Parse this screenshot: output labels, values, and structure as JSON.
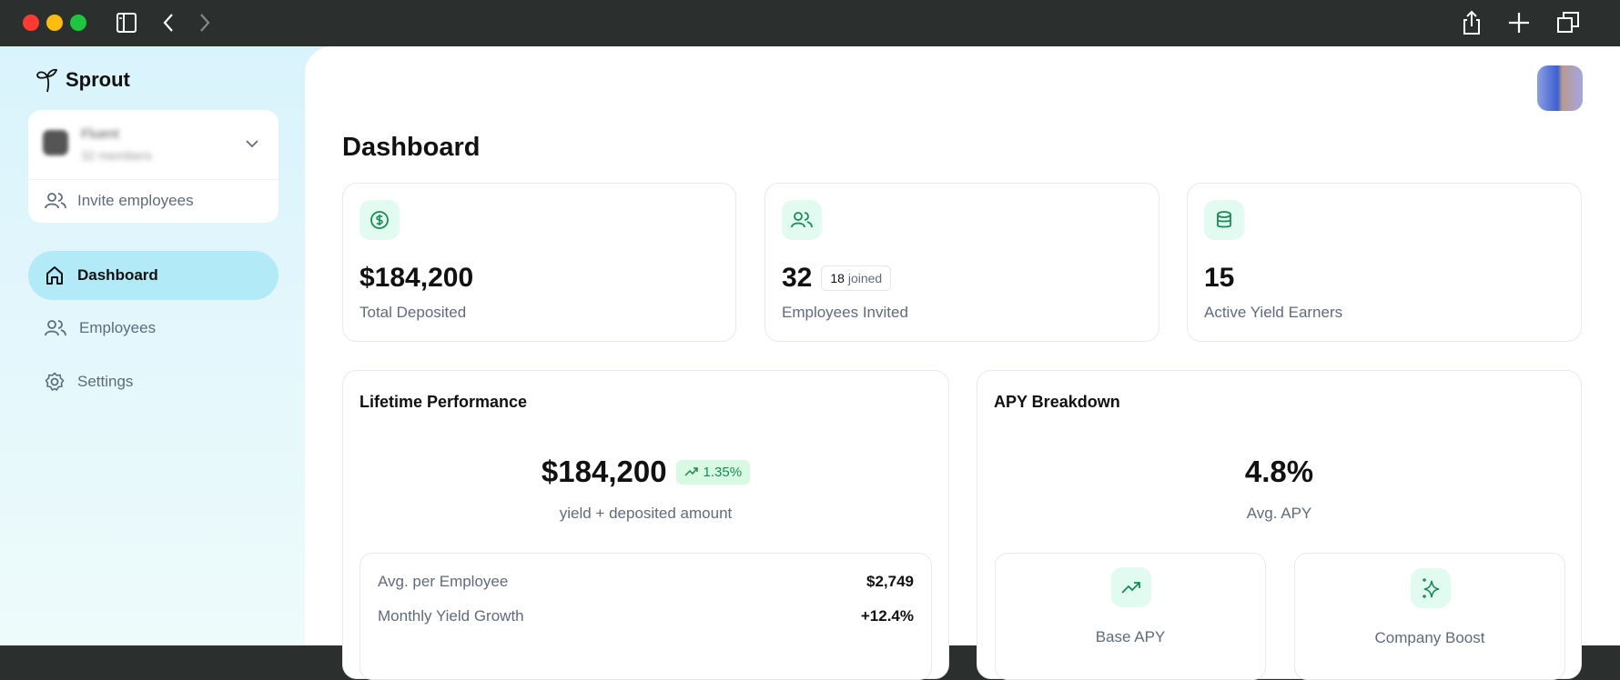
{
  "browser": {
    "icons": [
      "sidebar-toggle-icon",
      "back-icon",
      "forward-icon",
      "share-icon",
      "new-tab-icon",
      "tabs-icon"
    ]
  },
  "brand": {
    "name": "Sprout"
  },
  "org": {
    "name": "Fluent",
    "members": "32 members",
    "invite_label": "Invite employees"
  },
  "nav": [
    {
      "label": "Dashboard",
      "icon": "home-icon",
      "active": true
    },
    {
      "label": "Employees",
      "icon": "users-icon"
    },
    {
      "label": "Settings",
      "icon": "gear-icon"
    }
  ],
  "page": {
    "title": "Dashboard"
  },
  "stats": [
    {
      "icon": "dollar-icon",
      "value": "$184,200",
      "label": "Total Deposited"
    },
    {
      "icon": "users-icon",
      "value": "32",
      "badge_count": "18",
      "badge_text": "joined",
      "label": "Employees Invited"
    },
    {
      "icon": "database-icon",
      "value": "15",
      "label": "Active Yield Earners"
    }
  ],
  "lifetime": {
    "title": "Lifetime Performance",
    "value": "$184,200",
    "change": "1.35%",
    "subtitle": "yield + deposited amount",
    "rows": [
      {
        "label": "Avg. per Employee",
        "value": "$2,749"
      },
      {
        "label": "Monthly Yield Growth",
        "value": "+12.4%"
      }
    ]
  },
  "apy": {
    "title": "APY Breakdown",
    "value": "4.8%",
    "subtitle": "Avg. APY",
    "items": [
      {
        "icon": "trending-up-icon",
        "label": "Base APY"
      },
      {
        "icon": "sparkles-icon",
        "label": "Company Boost"
      }
    ]
  },
  "colors": {
    "accent": "#1a8a55",
    "active_nav": "#b3eaf8",
    "icon_bg": "#e1fbf1",
    "badge_bg": "#d8fae2"
  }
}
